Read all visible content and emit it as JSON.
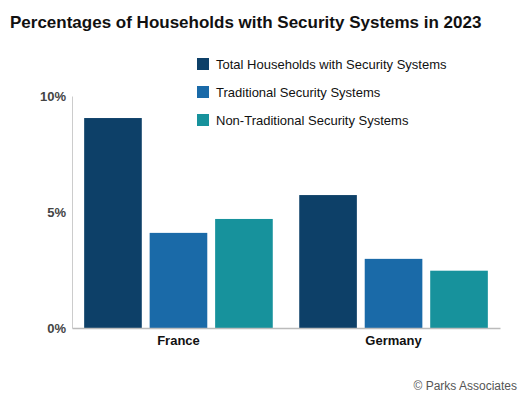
{
  "chart_data": {
    "type": "bar",
    "title": "Percentages of Households with Security Systems in 2023",
    "categories": [
      "France",
      "Germany"
    ],
    "series": [
      {
        "name": "Total Households with Security Systems",
        "color": "#0d4068",
        "values": [
          9.05,
          5.73
        ]
      },
      {
        "name": "Traditional Security Systems",
        "color": "#1a6aa8",
        "values": [
          4.1,
          2.98
        ]
      },
      {
        "name": "Non-Traditional Security Systems",
        "color": "#17929c",
        "values": [
          4.7,
          2.47
        ]
      }
    ],
    "ylim": [
      0,
      10
    ],
    "yticks": [
      {
        "value": 0,
        "label": "0%"
      },
      {
        "value": 5,
        "label": "5%"
      },
      {
        "value": 10,
        "label": "10%"
      }
    ],
    "grid": false,
    "legend": "top-right",
    "annotations": [
      "© Parks Associates"
    ]
  }
}
